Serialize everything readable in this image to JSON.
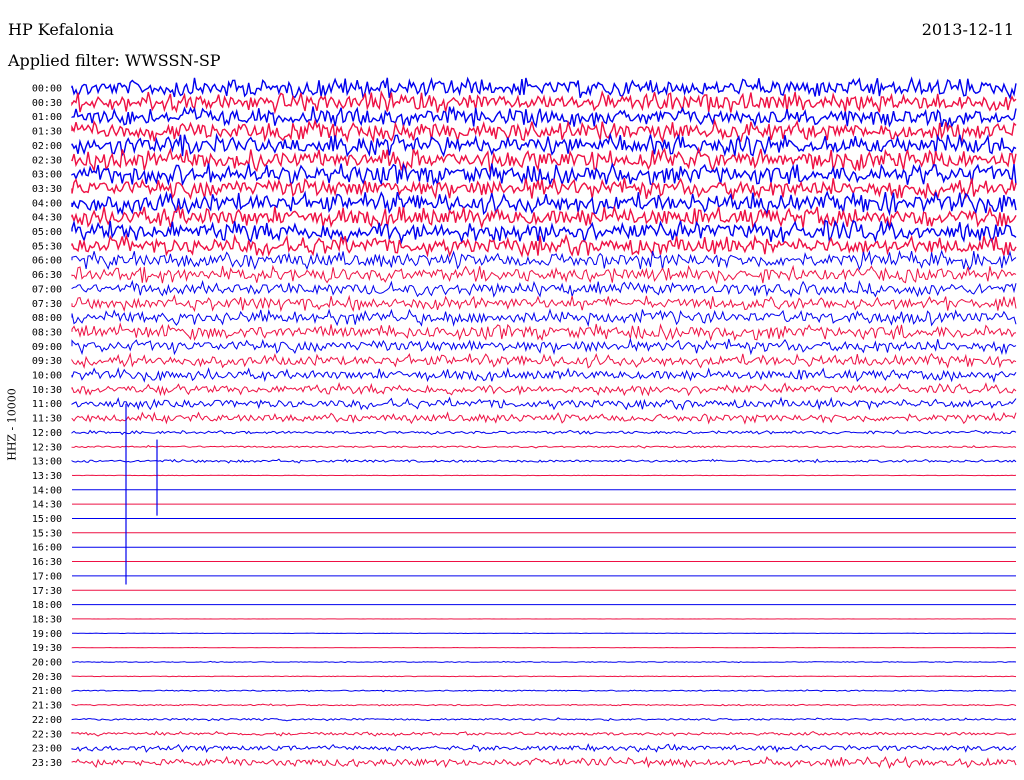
{
  "header": {
    "station": "HP Kefalonia",
    "date": "2013-12-11",
    "filter": "Applied filter: WWSSN-SP"
  },
  "channel_label": "HHZ - 10000",
  "colors": {
    "odd_trace": "#0000ee",
    "even_trace": "#ee1144"
  },
  "chart_data": {
    "type": "line",
    "description_kind": "helicorder",
    "rows": [
      {
        "label": "00:00",
        "activity": 0.95
      },
      {
        "label": "00:30",
        "activity": 0.95
      },
      {
        "label": "01:00",
        "activity": 0.95
      },
      {
        "label": "01:30",
        "activity": 0.95
      },
      {
        "label": "02:00",
        "activity": 1.0
      },
      {
        "label": "02:30",
        "activity": 1.0
      },
      {
        "label": "03:00",
        "activity": 1.0
      },
      {
        "label": "03:30",
        "activity": 1.0
      },
      {
        "label": "04:00",
        "activity": 1.0
      },
      {
        "label": "04:30",
        "activity": 1.0
      },
      {
        "label": "05:00",
        "activity": 1.0
      },
      {
        "label": "05:30",
        "activity": 0.95
      },
      {
        "label": "06:00",
        "activity": 0.85
      },
      {
        "label": "06:30",
        "activity": 0.8
      },
      {
        "label": "07:00",
        "activity": 0.7
      },
      {
        "label": "07:30",
        "activity": 0.7
      },
      {
        "label": "08:00",
        "activity": 0.75
      },
      {
        "label": "08:30",
        "activity": 0.75
      },
      {
        "label": "09:00",
        "activity": 0.7
      },
      {
        "label": "09:30",
        "activity": 0.65
      },
      {
        "label": "10:00",
        "activity": 0.6
      },
      {
        "label": "10:30",
        "activity": 0.55
      },
      {
        "label": "11:00",
        "activity": 0.55
      },
      {
        "label": "11:30",
        "activity": 0.5
      },
      {
        "label": "12:00",
        "activity": 0.2
      },
      {
        "label": "12:30",
        "activity": 0.12
      },
      {
        "label": "13:00",
        "activity": 0.18
      },
      {
        "label": "13:30",
        "activity": 0.03
      },
      {
        "label": "14:00",
        "activity": 0.0
      },
      {
        "label": "14:30",
        "activity": 0.0
      },
      {
        "label": "15:00",
        "activity": 0.0
      },
      {
        "label": "15:30",
        "activity": 0.0
      },
      {
        "label": "16:00",
        "activity": 0.0
      },
      {
        "label": "16:30",
        "activity": 0.0
      },
      {
        "label": "17:00",
        "activity": 0.0
      },
      {
        "label": "17:30",
        "activity": 0.0
      },
      {
        "label": "18:00",
        "activity": 0.0
      },
      {
        "label": "18:30",
        "activity": 0.01
      },
      {
        "label": "19:00",
        "activity": 0.03
      },
      {
        "label": "19:30",
        "activity": 0.02
      },
      {
        "label": "20:00",
        "activity": 0.06
      },
      {
        "label": "20:30",
        "activity": 0.05
      },
      {
        "label": "21:00",
        "activity": 0.09
      },
      {
        "label": "21:30",
        "activity": 0.1
      },
      {
        "label": "22:00",
        "activity": 0.14
      },
      {
        "label": "22:30",
        "activity": 0.22
      },
      {
        "label": "23:00",
        "activity": 0.35
      },
      {
        "label": "23:30",
        "activity": 0.5
      }
    ]
  }
}
